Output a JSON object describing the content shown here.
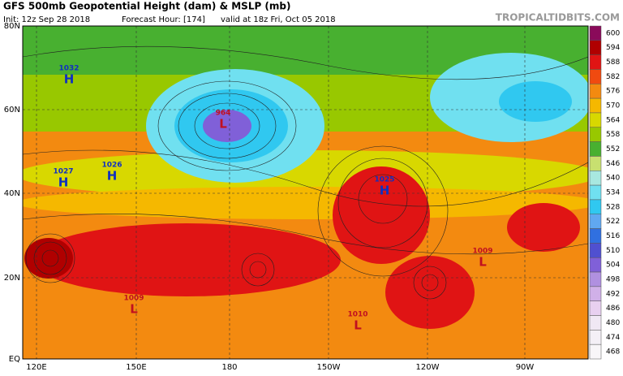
{
  "header": {
    "title": "GFS 500mb Geopotential Height (dam) & MSLP (mb)",
    "init": "Init: 12z Sep 28 2018",
    "forecast_hour": "Forecast Hour: [174]",
    "valid": "valid at 18z Fri, Oct 05 2018",
    "site": "TROPICALTIDBITS.COM"
  },
  "map": {
    "lat_labels": [
      "80N",
      "60N",
      "40N",
      "20N",
      "EQ"
    ],
    "lon_labels": [
      "120E",
      "150E",
      "180",
      "150W",
      "120W",
      "90W"
    ],
    "systems": [
      {
        "letter": "H",
        "pressure": "1032"
      },
      {
        "letter": "H",
        "pressure": "1027"
      },
      {
        "letter": "H",
        "pressure": "1026"
      },
      {
        "letter": "L",
        "pressure": "964"
      },
      {
        "letter": "H",
        "pressure": "1025"
      },
      {
        "letter": "L",
        "pressure": "1009"
      },
      {
        "letter": "L",
        "pressure": "1010"
      },
      {
        "letter": "L",
        "pressure": "1009"
      }
    ]
  },
  "colorbar": {
    "levels": [
      600,
      594,
      588,
      582,
      576,
      570,
      564,
      558,
      552,
      546,
      540,
      534,
      528,
      522,
      516,
      510,
      504,
      498,
      492,
      486,
      480,
      474,
      468
    ],
    "colors": [
      "#8a0a5a",
      "#b00000",
      "#e01414",
      "#f04a10",
      "#f38a10",
      "#f5b800",
      "#d8d800",
      "#98c800",
      "#48b030",
      "#c8e070",
      "#a8e8e0",
      "#70e0f0",
      "#30c8f0",
      "#60a8f0",
      "#3070e0",
      "#5050d0",
      "#8060d8",
      "#b090e0",
      "#d0b0e8",
      "#e8d0f0",
      "#f0e8f4",
      "#f4f0f6",
      "#f8f6f8"
    ]
  }
}
